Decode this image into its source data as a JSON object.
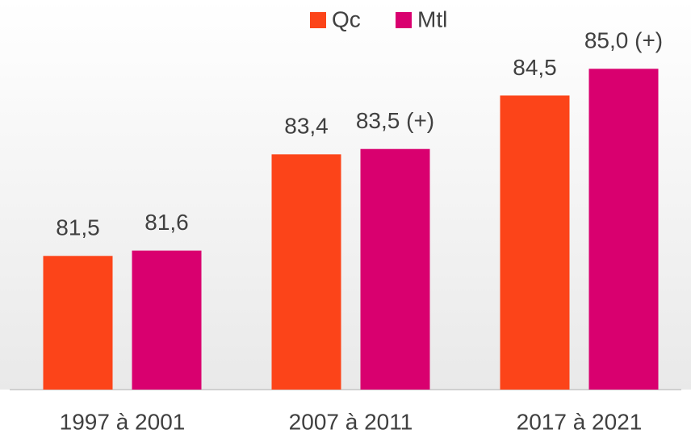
{
  "chart_data": {
    "type": "bar",
    "categories": [
      "1997 à 2001",
      "2007 à 2011",
      "2017 à 2021"
    ],
    "series": [
      {
        "name": "Qc",
        "color": "#fc4419",
        "values": [
          81.5,
          83.4,
          84.5
        ],
        "value_labels": [
          "81,5",
          "83,4",
          "84,5"
        ]
      },
      {
        "name": "Mtl",
        "color": "#d9006f",
        "values": [
          81.6,
          83.5,
          85.0
        ],
        "value_labels": [
          "81,6",
          "83,5 (+)",
          "85,0 (+)"
        ]
      }
    ],
    "ylim": [
      79,
      86
    ]
  }
}
